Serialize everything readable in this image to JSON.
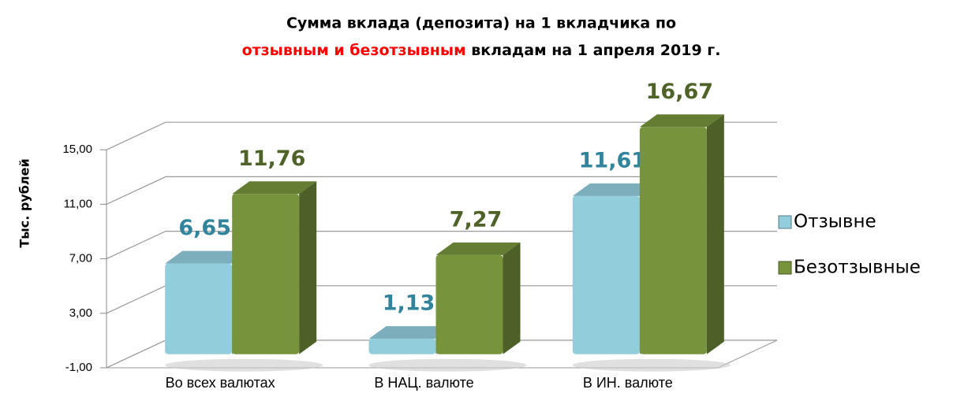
{
  "chart_data": {
    "type": "bar3d",
    "title": {
      "line1": "Сумма вклада (депозита) на 1 вкладчика по",
      "line2_highlight": "отзывным и безотзывным",
      "line2_rest": "вкладам на 1 апреля 2019 г.",
      "highlight_color": "#ff0000"
    },
    "y_label": "Тыс. рублей",
    "categories": [
      "Во всех валютах",
      "В НАЦ. валюте",
      "В ИН. валюте"
    ],
    "series": [
      {
        "name": "Отзывне",
        "color": "#92cddc",
        "label_color": "#31849b",
        "values": [
          6.65,
          1.13,
          11.61
        ],
        "value_labels": [
          "6,65",
          "1,13",
          "11,61"
        ]
      },
      {
        "name": "Безотзывные",
        "color": "#77933c",
        "label_color": "#4f6228",
        "values": [
          11.76,
          7.27,
          16.67
        ],
        "value_labels": [
          "11,76",
          "7,27",
          "16,67"
        ]
      }
    ],
    "ylim": [
      -1,
      17
    ],
    "yticks": [
      {
        "value": -1,
        "label": "-1,00"
      },
      {
        "value": 3,
        "label": "3,00"
      },
      {
        "value": 7,
        "label": "7,00"
      },
      {
        "value": 11,
        "label": "11,00"
      },
      {
        "value": 15,
        "label": "15,00"
      }
    ],
    "grid": true,
    "legend": "right"
  }
}
